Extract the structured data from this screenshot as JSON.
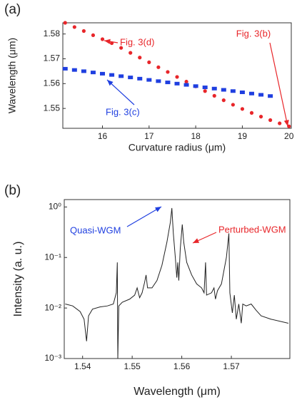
{
  "chart_data": [
    {
      "type": "scatter",
      "label": "(a)",
      "x_label": "Curvature radius (μm)",
      "y_label": "Wavelength (μm)",
      "xlim": [
        15.15,
        20.05
      ],
      "xticks": [
        16,
        17,
        18,
        19,
        20
      ],
      "ylim": [
        1.542,
        1.5845
      ],
      "yticks": [
        1.55,
        1.56,
        1.57,
        1.58
      ],
      "series": [
        {
          "name": "Fig. 3(d)",
          "color": "#e8262a",
          "marker": "circle",
          "x": [
            15.2,
            15.4,
            15.6,
            15.8,
            16.0,
            16.2,
            16.4,
            16.6,
            16.8,
            17.0,
            17.2,
            17.4,
            17.6,
            17.8,
            18.0,
            18.2,
            18.4,
            18.6,
            18.8,
            19.0,
            19.2,
            19.4,
            19.6,
            19.8,
            20.0
          ],
          "values": [
            1.5845,
            1.5828,
            1.5812,
            1.5795,
            1.5779,
            1.5763,
            1.5744,
            1.5724,
            1.5705,
            1.5686,
            1.5666,
            1.5647,
            1.5627,
            1.5608,
            1.5589,
            1.557,
            1.5551,
            1.5533,
            1.5515,
            1.5498,
            1.5482,
            1.5467,
            1.5453,
            1.544,
            1.5428
          ]
        },
        {
          "name": "Fig. 3(c)",
          "color": "#1f3fe0",
          "marker": "square",
          "x": [
            15.2,
            15.4,
            15.6,
            15.8,
            16.0,
            16.2,
            16.4,
            16.6,
            16.8,
            17.0,
            17.2,
            17.4,
            17.6,
            17.8,
            18.0,
            18.2,
            18.4,
            18.6,
            18.8,
            19.0,
            19.2,
            19.4,
            19.6
          ],
          "values": [
            1.566,
            1.5655,
            1.565,
            1.5645,
            1.564,
            1.5635,
            1.563,
            1.5625,
            1.562,
            1.5615,
            1.561,
            1.5605,
            1.56,
            1.5595,
            1.559,
            1.5585,
            1.558,
            1.5575,
            1.557,
            1.5565,
            1.556,
            1.5555,
            1.555
          ]
        }
      ],
      "annotations": [
        {
          "text": "Fig. 3(d)",
          "color": "#e8262a"
        },
        {
          "text": "Fig. 3(b)",
          "color": "#e8262a"
        },
        {
          "text": "Fig. 3(c)",
          "color": "#1f3fe0"
        }
      ]
    },
    {
      "type": "line",
      "label": "(b)",
      "x_label": "Wavelength (μm)",
      "y_label": "Intensity (a. u.)",
      "color": "#222222",
      "yscale": "log",
      "xlim": [
        1.5363,
        1.5818
      ],
      "xticks": [
        1.54,
        1.55,
        1.56,
        1.57
      ],
      "ylim": [
        0.001,
        1.4
      ],
      "yticks": [
        {
          "value": 0.001,
          "label": "10⁻³"
        },
        {
          "value": 0.01,
          "label": "10⁻²"
        },
        {
          "value": 0.1,
          "label": "10⁻¹"
        },
        {
          "value": 1,
          "label": "10⁰"
        }
      ],
      "x": [
        1.5365,
        1.538,
        1.5395,
        1.5403,
        1.5408,
        1.5412,
        1.542,
        1.5435,
        1.545,
        1.5462,
        1.5468,
        1.547,
        1.5471,
        1.5473,
        1.548,
        1.5495,
        1.5505,
        1.551,
        1.5515,
        1.552,
        1.5525,
        1.5528,
        1.5531,
        1.554,
        1.555,
        1.556,
        1.557,
        1.5577,
        1.558,
        1.5583,
        1.5587,
        1.559,
        1.5592,
        1.5594,
        1.5597,
        1.5601,
        1.5604,
        1.561,
        1.562,
        1.563,
        1.564,
        1.5645,
        1.5648,
        1.565,
        1.566,
        1.5665,
        1.5668,
        1.5672,
        1.568,
        1.569,
        1.5695,
        1.5697,
        1.5702,
        1.5706,
        1.571,
        1.5715,
        1.572,
        1.5723,
        1.573,
        1.574,
        1.575,
        1.576,
        1.578,
        1.5815
      ],
      "values": [
        0.012,
        0.011,
        0.0085,
        0.006,
        0.0022,
        0.007,
        0.0095,
        0.0105,
        0.011,
        0.012,
        0.02,
        0.08,
        0.001,
        0.011,
        0.013,
        0.015,
        0.018,
        0.025,
        0.016,
        0.02,
        0.032,
        0.045,
        0.025,
        0.025,
        0.035,
        0.07,
        0.2,
        0.5,
        0.95,
        0.3,
        0.1,
        0.04,
        0.08,
        0.035,
        0.15,
        0.45,
        0.2,
        0.08,
        0.045,
        0.03,
        0.025,
        0.02,
        0.08,
        0.018,
        0.02,
        0.025,
        0.015,
        0.022,
        0.03,
        0.1,
        0.3,
        0.02,
        0.008,
        0.018,
        0.006,
        0.012,
        0.005,
        0.012,
        0.011,
        0.012,
        0.009,
        0.007,
        0.006,
        0.005
      ],
      "annotations": [
        {
          "text": "Quasi-WGM",
          "color": "#1f3fe0"
        },
        {
          "text": "Perturbed-WGM",
          "color": "#e8262a"
        }
      ]
    }
  ]
}
